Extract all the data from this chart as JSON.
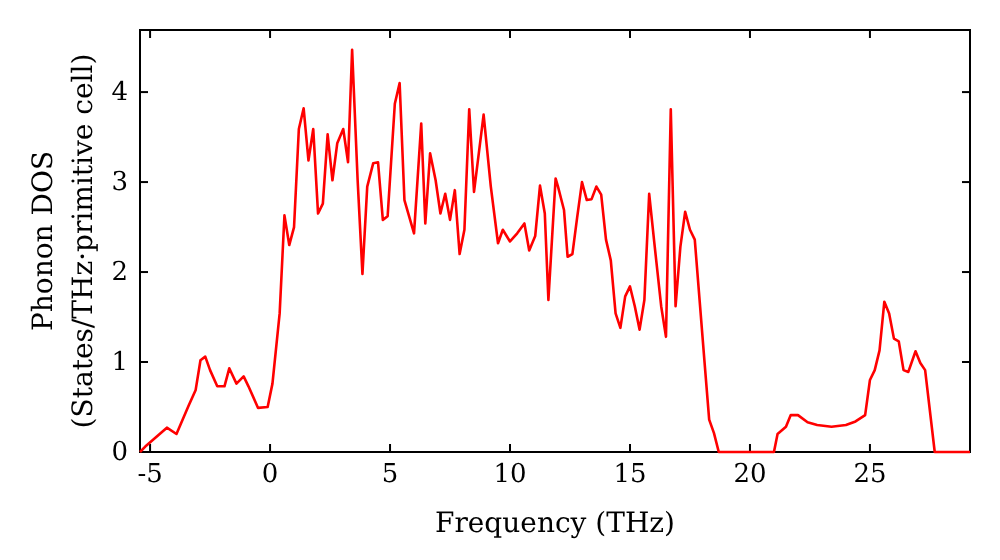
{
  "chart_data": {
    "type": "line",
    "xlabel": "Frequency (THz)",
    "ylabel": "Phonon DOS\n(States/THz·primitive cell)",
    "xlim": [
      -5.42,
      29.17
    ],
    "ylim": [
      0,
      4.69
    ],
    "xticks": [
      -5,
      0,
      5,
      10,
      15,
      20,
      25
    ],
    "yticks": [
      0,
      1,
      2,
      3,
      4
    ],
    "marker": "none",
    "line_style": "solid",
    "series": [
      {
        "color": "#ff0000",
        "x": [
          -5.42,
          -5.2,
          -4.3,
          -3.9,
          -3.4,
          -3.1,
          -2.9,
          -2.7,
          -2.5,
          -2.2,
          -1.9,
          -1.7,
          -1.4,
          -1.1,
          -0.9,
          -0.5,
          -0.1,
          0.1,
          0.4,
          0.6,
          0.8,
          1.0,
          1.2,
          1.4,
          1.6,
          1.8,
          2.0,
          2.2,
          2.4,
          2.6,
          2.8,
          3.05,
          3.25,
          3.42,
          3.65,
          3.85,
          4.05,
          4.3,
          4.5,
          4.7,
          4.9,
          5.2,
          5.4,
          5.6,
          6.0,
          6.3,
          6.47,
          6.67,
          6.9,
          7.1,
          7.3,
          7.5,
          7.7,
          7.9,
          8.1,
          8.3,
          8.5,
          8.9,
          9.2,
          9.5,
          9.7,
          10.0,
          10.3,
          10.6,
          10.8,
          11.05,
          11.25,
          11.45,
          11.6,
          11.9,
          12.0,
          12.25,
          12.4,
          12.6,
          12.8,
          13.0,
          13.2,
          13.4,
          13.6,
          13.8,
          14.0,
          14.2,
          14.4,
          14.6,
          14.8,
          15.0,
          15.2,
          15.4,
          15.6,
          15.8,
          16.0,
          16.3,
          16.5,
          16.7,
          16.9,
          17.1,
          17.3,
          17.5,
          17.7,
          17.9,
          18.1,
          18.3,
          18.5,
          18.7,
          21.0,
          21.15,
          21.5,
          21.7,
          22.0,
          22.4,
          22.8,
          23.4,
          24.0,
          24.4,
          24.8,
          25.0,
          25.2,
          25.4,
          25.6,
          25.8,
          26.0,
          26.2,
          26.4,
          26.6,
          26.9,
          27.1,
          27.3,
          27.7,
          29.17
        ],
        "values": [
          0,
          0.06,
          0.27,
          0.2,
          0.51,
          0.69,
          1.02,
          1.06,
          0.91,
          0.73,
          0.73,
          0.93,
          0.76,
          0.84,
          0.73,
          0.49,
          0.5,
          0.76,
          1.54,
          2.63,
          2.3,
          2.5,
          3.59,
          3.82,
          3.24,
          3.59,
          2.65,
          2.76,
          3.53,
          3.02,
          3.43,
          3.59,
          3.22,
          4.47,
          3.02,
          1.98,
          2.95,
          3.21,
          3.22,
          2.58,
          2.62,
          3.87,
          4.1,
          2.8,
          2.43,
          3.65,
          2.54,
          3.32,
          3.02,
          2.65,
          2.87,
          2.58,
          2.91,
          2.2,
          2.47,
          3.81,
          2.89,
          3.75,
          2.95,
          2.32,
          2.47,
          2.34,
          2.43,
          2.54,
          2.24,
          2.4,
          2.96,
          2.65,
          1.69,
          3.04,
          2.95,
          2.69,
          2.17,
          2.2,
          2.61,
          3.0,
          2.8,
          2.81,
          2.95,
          2.86,
          2.36,
          2.13,
          1.54,
          1.38,
          1.73,
          1.84,
          1.62,
          1.36,
          1.69,
          2.87,
          2.36,
          1.62,
          1.28,
          3.81,
          1.62,
          2.28,
          2.67,
          2.47,
          2.36,
          1.69,
          1.02,
          0.36,
          0.21,
          0,
          0,
          0.2,
          0.28,
          0.41,
          0.41,
          0.33,
          0.3,
          0.28,
          0.3,
          0.34,
          0.41,
          0.8,
          0.91,
          1.13,
          1.67,
          1.54,
          1.26,
          1.23,
          0.91,
          0.89,
          1.12,
          0.99,
          0.91,
          0,
          0
        ]
      }
    ]
  }
}
